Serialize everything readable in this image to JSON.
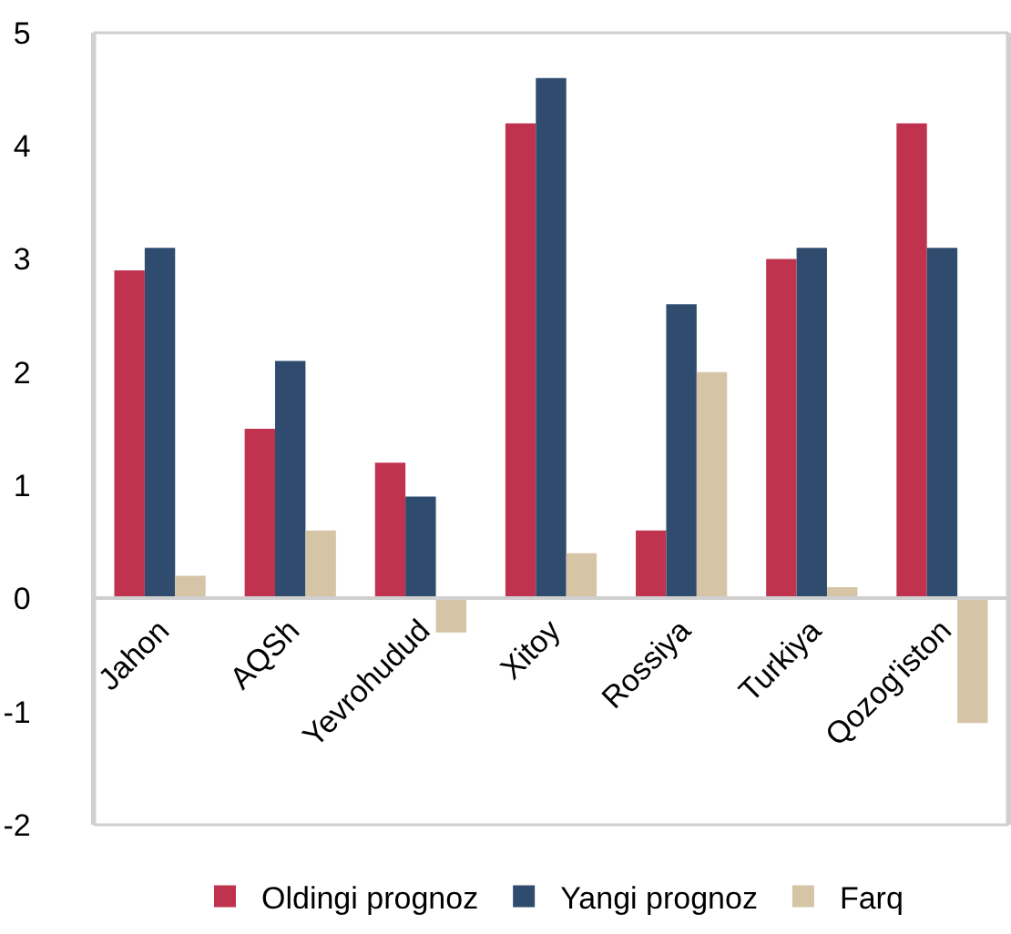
{
  "chart_data": {
    "type": "bar",
    "categories": [
      "Jahon",
      "AQSh",
      "Yevrohudud",
      "Xitoy",
      "Rossiya",
      "Turkiya",
      "Qozog'iston"
    ],
    "series": [
      {
        "name": "Oldingi prognoz",
        "color": "#c0334f",
        "values": [
          2.9,
          1.5,
          1.2,
          4.2,
          0.6,
          3.0,
          4.2
        ]
      },
      {
        "name": "Yangi prognoz",
        "color": "#2f4b6e",
        "values": [
          3.1,
          2.1,
          0.9,
          4.6,
          2.6,
          3.1,
          3.1
        ]
      },
      {
        "name": "Farq",
        "color": "#d6c4a6",
        "values": [
          0.2,
          0.6,
          -0.3,
          0.4,
          2.0,
          0.1,
          -1.1
        ]
      }
    ],
    "ylim": [
      -2,
      5
    ],
    "yticks": [
      -2,
      -1,
      0,
      1,
      2,
      3,
      4,
      5
    ],
    "grid": false,
    "legend": "bottom"
  }
}
